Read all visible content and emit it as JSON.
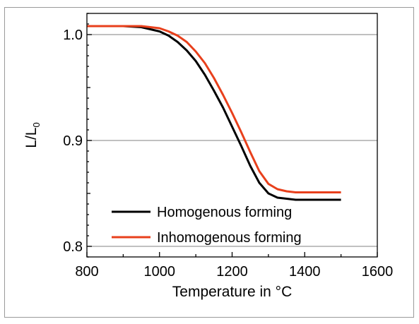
{
  "chart_data": {
    "type": "line",
    "xlabel": "Temperature in °C",
    "ylabel": {
      "main": "L/L",
      "subscript": "0"
    },
    "xlim": [
      800,
      1600
    ],
    "ylim": [
      0.79,
      1.02
    ],
    "xticks": [
      800,
      1000,
      1200,
      1400,
      1600
    ],
    "xtick_labels": [
      "800",
      "1000",
      "1200",
      "1400",
      "1600"
    ],
    "yticks": [
      0.8,
      0.9,
      1.0
    ],
    "ytick_labels": [
      "0.8",
      "0.9",
      "1.0"
    ],
    "grid": "horizontal at major y ticks",
    "legend_position": "lower-left",
    "series": [
      {
        "name": "Homogenous forming",
        "color": "#000000",
        "x": [
          800,
          850,
          900,
          950,
          1000,
          1025,
          1050,
          1075,
          1100,
          1125,
          1150,
          1175,
          1200,
          1225,
          1250,
          1275,
          1300,
          1325,
          1350,
          1375,
          1400,
          1450,
          1500
        ],
        "y": [
          1.008,
          1.008,
          1.008,
          1.007,
          1.003,
          0.999,
          0.993,
          0.985,
          0.975,
          0.962,
          0.947,
          0.931,
          0.913,
          0.895,
          0.876,
          0.86,
          0.85,
          0.846,
          0.845,
          0.844,
          0.844,
          0.844,
          0.844
        ]
      },
      {
        "name": "Inhomogenous forming",
        "color": "#e8401c",
        "x": [
          800,
          850,
          900,
          950,
          1000,
          1025,
          1050,
          1075,
          1100,
          1125,
          1150,
          1175,
          1200,
          1225,
          1250,
          1275,
          1300,
          1325,
          1350,
          1375,
          1400,
          1450,
          1500
        ],
        "y": [
          1.008,
          1.008,
          1.008,
          1.008,
          1.006,
          1.003,
          0.999,
          0.993,
          0.984,
          0.973,
          0.959,
          0.943,
          0.926,
          0.908,
          0.889,
          0.871,
          0.859,
          0.854,
          0.852,
          0.851,
          0.851,
          0.851,
          0.851
        ]
      }
    ]
  }
}
